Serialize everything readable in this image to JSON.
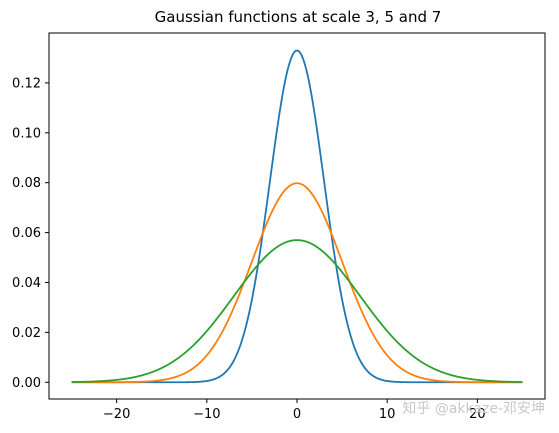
{
  "chart_data": {
    "type": "line",
    "title": "Gaussian functions at scale 3, 5 and 7",
    "xlabel": "",
    "ylabel": "",
    "xlim": [
      -27.5,
      27.5
    ],
    "ylim": [
      -0.0067,
      0.14
    ],
    "x_ticks": [
      -20,
      -10,
      0,
      10,
      20
    ],
    "x_tick_labels": [
      "−20",
      "−10",
      "0",
      "10",
      "20"
    ],
    "y_ticks": [
      0.0,
      0.02,
      0.04,
      0.06,
      0.08,
      0.1,
      0.12
    ],
    "y_tick_labels": [
      "0.00",
      "0.02",
      "0.04",
      "0.06",
      "0.08",
      "0.10",
      "0.12"
    ],
    "grid": false,
    "legend": null,
    "x_range": [
      -25,
      25
    ],
    "series": [
      {
        "sigma": 3,
        "color": "#1f77b4",
        "peak": 0.133
      },
      {
        "sigma": 5,
        "color": "#ff7f0e",
        "peak": 0.0798
      },
      {
        "sigma": 7,
        "color": "#2ca02c",
        "peak": 0.057
      }
    ]
  },
  "watermark": "知乎 @akkaze-邓安坤"
}
